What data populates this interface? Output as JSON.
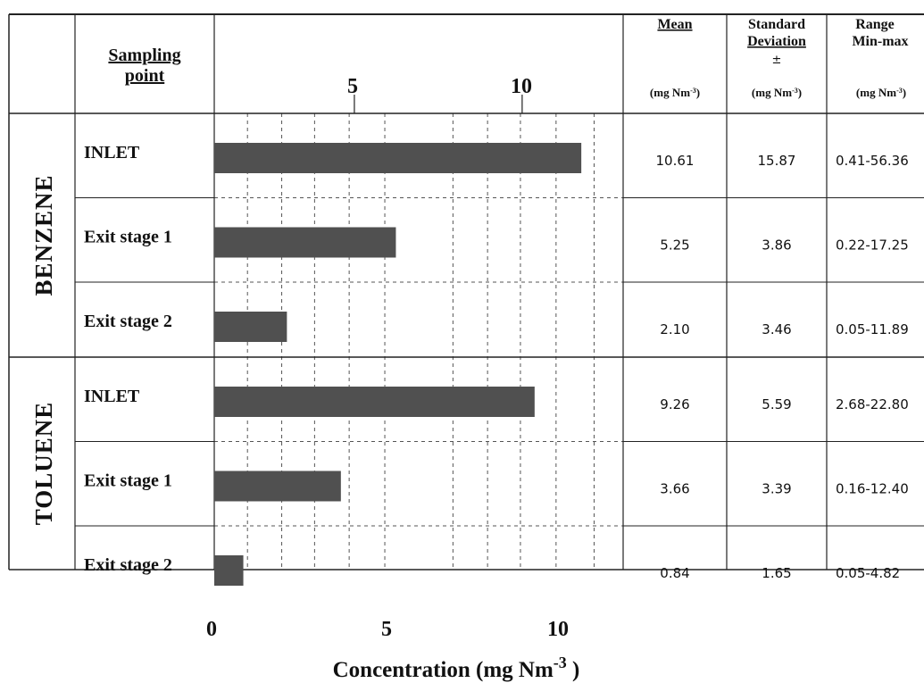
{
  "header": {
    "sampling_point_label": "Sampling point",
    "top_ticks": [
      "5",
      "10"
    ],
    "mean_title": "Mean",
    "sd_title": "Standard Deviation",
    "sd_symbol": "±",
    "range_title": "Range Min-max",
    "unit_prefix": "(mg Nm",
    "unit_exp": "-3",
    "unit_suffix": ")"
  },
  "chart_data": {
    "type": "bar",
    "orientation": "horizontal",
    "xlabel": "Concentration (mg Nm",
    "xlabel_exp": "-3",
    "xlabel_suffix": " )",
    "xlim": [
      0,
      11.2
    ],
    "x_ticks": [
      "0",
      "5",
      "10"
    ],
    "grid": true,
    "groups": [
      {
        "name": "BENZENE",
        "rows": [
          {
            "label": "INLET",
            "value": 10.61,
            "mean": "10.61",
            "sd": "15.87",
            "range": "0.41-56.36"
          },
          {
            "label": "Exit stage 1",
            "value": 5.25,
            "mean": "5.25",
            "sd": "3.86",
            "range": "0.22-17.25"
          },
          {
            "label": "Exit stage 2",
            "value": 2.1,
            "mean": "2.10",
            "sd": "3.46",
            "range": "0.05-11.89"
          }
        ]
      },
      {
        "name": "TOLUENE",
        "rows": [
          {
            "label": "INLET",
            "value": 9.26,
            "mean": "9.26",
            "sd": "5.59",
            "range": "2.68-22.80"
          },
          {
            "label": "Exit stage 1",
            "value": 3.66,
            "mean": "3.66",
            "sd": "3.39",
            "range": "0.16-12.40"
          },
          {
            "label": "Exit stage 2",
            "value": 0.84,
            "mean": "0.84",
            "sd": "1.65",
            "range": "0.05-4.82"
          }
        ]
      }
    ],
    "colors": {
      "bar": "#505050",
      "lines": "#222222",
      "grid": "#555555"
    }
  }
}
